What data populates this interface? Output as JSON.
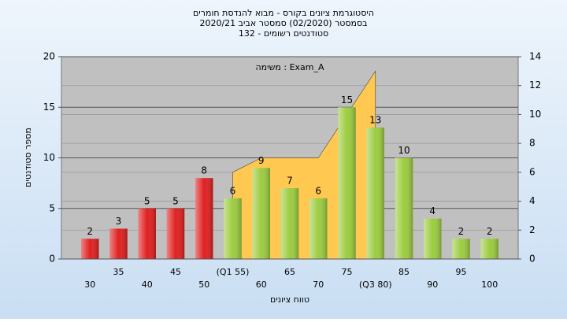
{
  "chart_data": {
    "type": "bar",
    "title": [
      "היסטוגרמת ציונים בקורס - מבוא להנדסת חומרים",
      "בסמסטר  (02/2020)  סמסטר אביב 2020/21",
      "סטודנטים רשומים - 132"
    ],
    "annotation": "משימה : Exam_A",
    "x_label": "טווח ציונים",
    "y_label": "מספר סטודנטים",
    "categories": [
      "30",
      "35",
      "40",
      "45",
      "50",
      "(Q1 55)",
      "60",
      "65",
      "70",
      "75",
      "(Q3 80)",
      "85",
      "90",
      "95",
      "100"
    ],
    "series": [
      {
        "colors": [
          "#e02020",
          "#e02020",
          "#e02020",
          "#e02020",
          "#e02020",
          "#9ccc40",
          "#9ccc40",
          "#9ccc40",
          "#9ccc40",
          "#9ccc40",
          "#9ccc40",
          "#9ccc40",
          "#9ccc40",
          "#9ccc40",
          "#9ccc40"
        ],
        "values": [
          2,
          3,
          5,
          5,
          8,
          6,
          9,
          7,
          6,
          15,
          13,
          10,
          4,
          2,
          2
        ]
      },
      {
        "type": "area",
        "axis": "y2",
        "color": "#ffc850",
        "values": [
          null,
          null,
          null,
          null,
          null,
          6,
          7,
          7,
          7,
          10,
          13,
          null,
          null,
          null,
          null
        ]
      }
    ],
    "ylim": [
      0,
      20
    ],
    "yticks": [
      0,
      5,
      10,
      15,
      20
    ],
    "y2lim": [
      0,
      14
    ],
    "y2ticks": [
      0,
      2,
      4,
      6,
      8,
      10,
      12,
      14
    ],
    "grid": true
  }
}
